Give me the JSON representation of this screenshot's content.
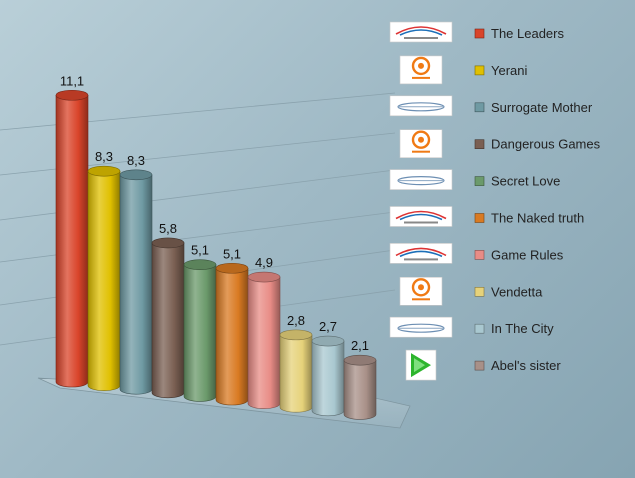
{
  "chart_data": {
    "type": "bar",
    "categories": [
      "The Leaders",
      "Yerani",
      "Surrogate Mother",
      "Dangerous Games",
      "Secret Love",
      "The Naked truth",
      "Game Rules",
      "Vendetta",
      "In The City",
      "Abel's sister"
    ],
    "values": [
      11.1,
      8.3,
      8.3,
      5.8,
      5.1,
      5.1,
      4.9,
      2.8,
      2.7,
      2.1
    ],
    "value_labels": [
      "11,1",
      "8,3",
      "8,3",
      "5,8",
      "5,1",
      "5,1",
      "4,9",
      "2,8",
      "2,7",
      "2,1"
    ],
    "title": "",
    "xlabel": "",
    "ylabel": "",
    "ylim": [
      0,
      12
    ],
    "grid": true,
    "legend_position": "right",
    "colors": [
      "#d9442a",
      "#e0c000",
      "#6f9aa3",
      "#7a5f52",
      "#6b9a6b",
      "#d97a22",
      "#e88c86",
      "#e6d27a",
      "#a9c8d0",
      "#a89088"
    ],
    "channel_logos": [
      "armenia-tv-logo",
      "shant-tv-logo",
      "h1-tv-logo",
      "shant-tv-logo",
      "h1-tv-logo",
      "armenia-tv-logo",
      "armenia-tv-logo",
      "shant-tv-logo",
      "h1-tv-logo",
      "play-tv-logo"
    ]
  }
}
